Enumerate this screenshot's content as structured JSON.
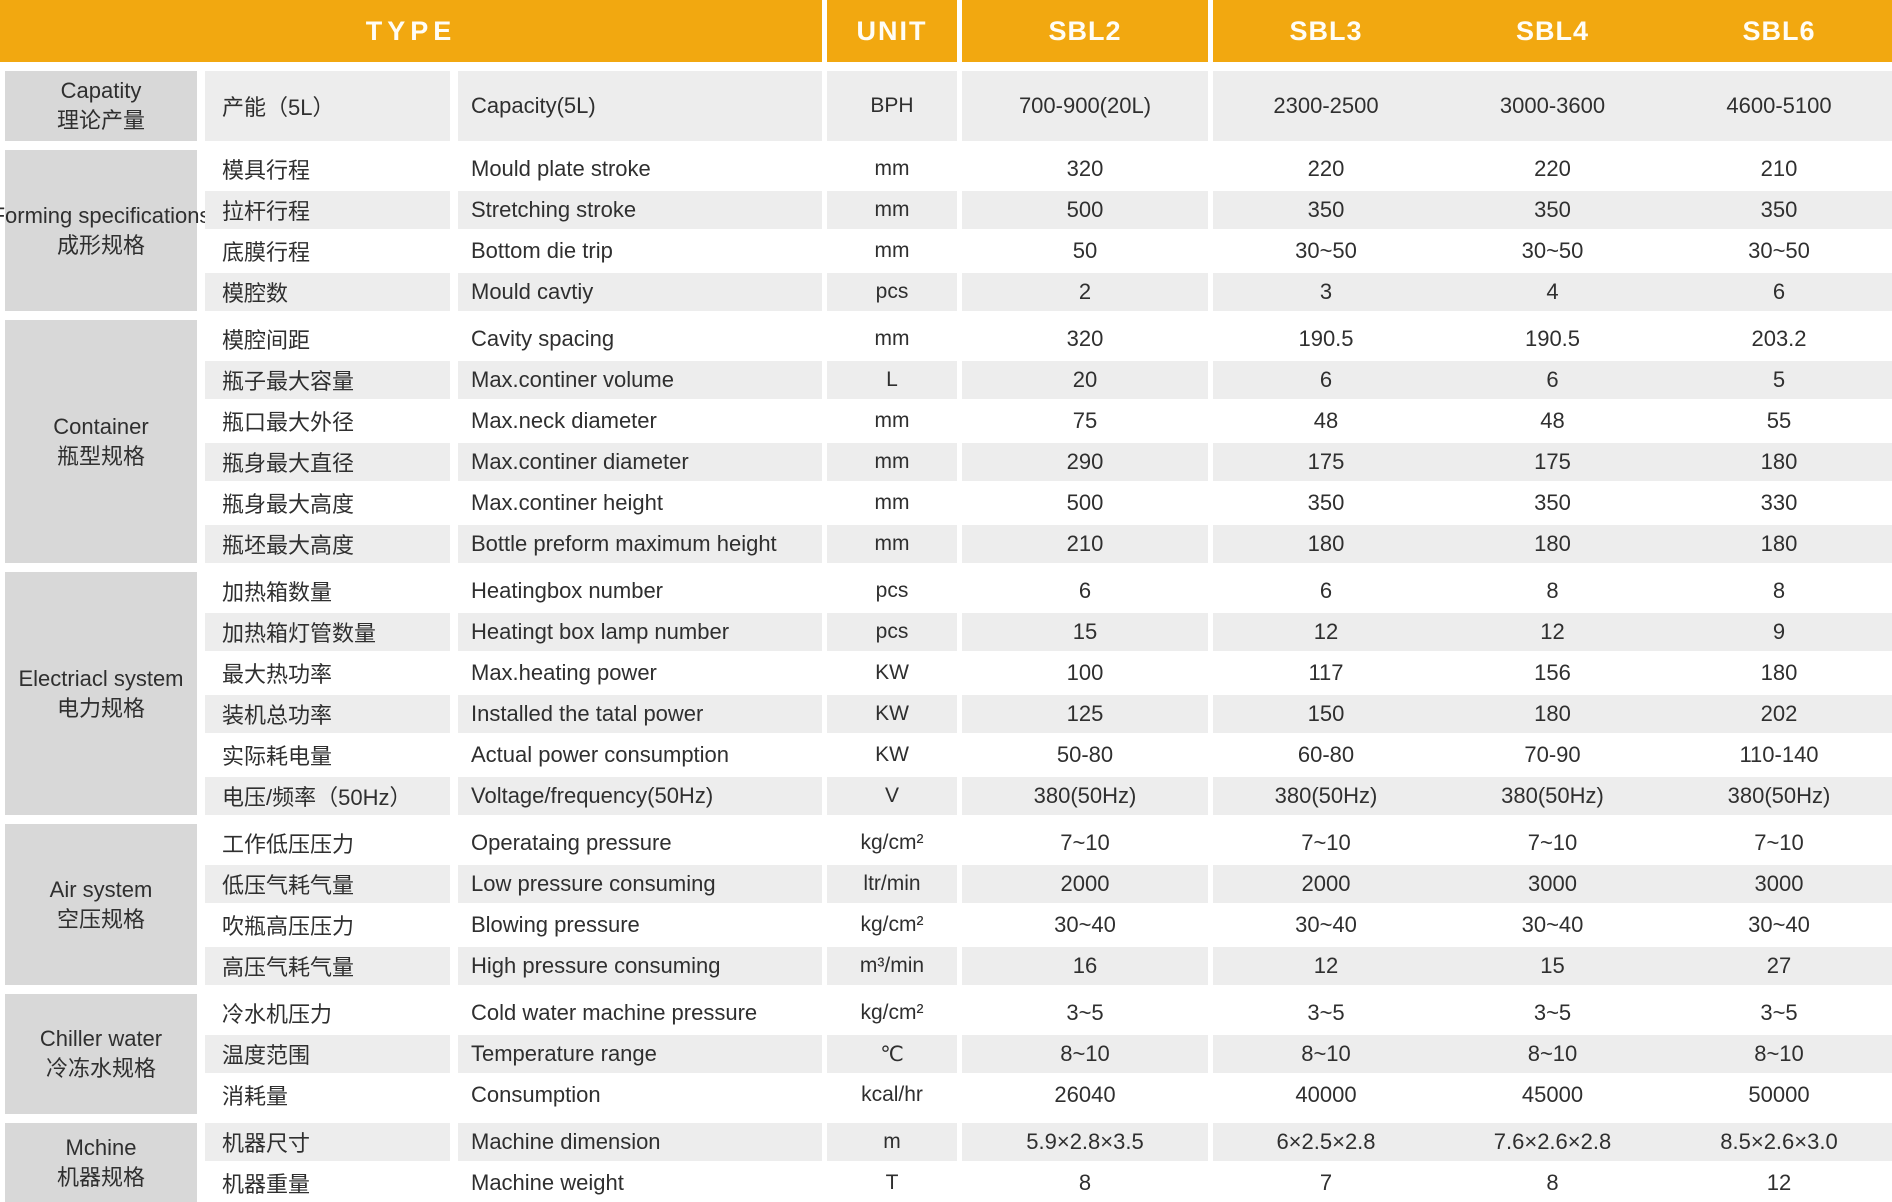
{
  "colors": {
    "header_bg": "#F2A810",
    "header_text": "#FFFDF6",
    "category_bg": "#D8D8D8",
    "row_shaded_bg": "#EDEDED",
    "row_white_bg": "#FFFFFF",
    "text": "#2F2F2F"
  },
  "header": {
    "type_label": "TYPE",
    "unit_label": "UNIT",
    "models": [
      "SBL2",
      "SBL3",
      "SBL4",
      "SBL6"
    ]
  },
  "groups": [
    {
      "name_en": "Capatity",
      "name_zh": "理论产量",
      "rows": [
        {
          "zh": "产能（5L）",
          "en": "Capacity(5L)",
          "unit": "BPH",
          "values": [
            "700-900(20L)",
            "2300-2500",
            "3000-3600",
            "4600-5100"
          ]
        }
      ]
    },
    {
      "name_en": "Forming specifications",
      "name_zh": "成形规格",
      "rows": [
        {
          "zh": "模具行程",
          "en": "Mould plate stroke",
          "unit": "mm",
          "values": [
            "320",
            "220",
            "220",
            "210"
          ]
        },
        {
          "zh": "拉杆行程",
          "en": "Stretching stroke",
          "unit": "mm",
          "values": [
            "500",
            "350",
            "350",
            "350"
          ]
        },
        {
          "zh": "底膜行程",
          "en": "Bottom die trip",
          "unit": "mm",
          "values": [
            "50",
            "30~50",
            "30~50",
            "30~50"
          ]
        },
        {
          "zh": "模腔数",
          "en": "Mould cavtiy",
          "unit": "pcs",
          "values": [
            "2",
            "3",
            "4",
            "6"
          ]
        }
      ]
    },
    {
      "name_en": "Container",
      "name_zh": "瓶型规格",
      "rows": [
        {
          "zh": "模腔间距",
          "en": "Cavity spacing",
          "unit": "mm",
          "values": [
            "320",
            "190.5",
            "190.5",
            "203.2"
          ]
        },
        {
          "zh": "瓶子最大容量",
          "en": "Max.continer volume",
          "unit": "L",
          "values": [
            "20",
            "6",
            "6",
            "5"
          ]
        },
        {
          "zh": "瓶口最大外径",
          "en": "Max.neck diameter",
          "unit": "mm",
          "values": [
            "75",
            "48",
            "48",
            "55"
          ]
        },
        {
          "zh": "瓶身最大直径",
          "en": "Max.continer diameter",
          "unit": "mm",
          "values": [
            "290",
            "175",
            "175",
            "180"
          ]
        },
        {
          "zh": "瓶身最大高度",
          "en": "Max.continer height",
          "unit": "mm",
          "values": [
            "500",
            "350",
            "350",
            "330"
          ]
        },
        {
          "zh": "瓶坯最大高度",
          "en": "Bottle preform maximum height",
          "unit": "mm",
          "values": [
            "210",
            "180",
            "180",
            "180"
          ]
        }
      ]
    },
    {
      "name_en": "Electriacl system",
      "name_zh": "电力规格",
      "rows": [
        {
          "zh": "加热箱数量",
          "en": "Heatingbox number",
          "unit": "pcs",
          "values": [
            "6",
            "6",
            "8",
            "8"
          ]
        },
        {
          "zh": "加热箱灯管数量",
          "en": "Heatingt box lamp number",
          "unit": "pcs",
          "values": [
            "15",
            "12",
            "12",
            "9"
          ]
        },
        {
          "zh": "最大热功率",
          "en": "Max.heating power",
          "unit": "KW",
          "values": [
            "100",
            "117",
            "156",
            "180"
          ]
        },
        {
          "zh": "装机总功率",
          "en": "Installed the tatal power",
          "unit": "KW",
          "values": [
            "125",
            "150",
            "180",
            "202"
          ]
        },
        {
          "zh": "实际耗电量",
          "en": "Actual power consumption",
          "unit": "KW",
          "values": [
            "50-80",
            "60-80",
            "70-90",
            "110-140"
          ]
        },
        {
          "zh": "电压/频率（50Hz）",
          "en": "Voltage/frequency(50Hz)",
          "unit": "V",
          "values": [
            "380(50Hz)",
            "380(50Hz)",
            "380(50Hz)",
            "380(50Hz)"
          ]
        }
      ]
    },
    {
      "name_en": "Air system",
      "name_zh": "空压规格",
      "rows": [
        {
          "zh": "工作低压压力",
          "en": "Operataing pressure",
          "unit": "kg/cm²",
          "values": [
            "7~10",
            "7~10",
            "7~10",
            "7~10"
          ]
        },
        {
          "zh": "低压气耗气量",
          "en": "Low pressure consuming",
          "unit": "ltr/min",
          "values": [
            "2000",
            "2000",
            "3000",
            "3000"
          ]
        },
        {
          "zh": "吹瓶高压压力",
          "en": "Blowing pressure",
          "unit": "kg/cm²",
          "values": [
            "30~40",
            "30~40",
            "30~40",
            "30~40"
          ]
        },
        {
          "zh": "高压气耗气量",
          "en": "High pressure consuming",
          "unit": "m³/min",
          "values": [
            "16",
            "12",
            "15",
            "27"
          ]
        }
      ]
    },
    {
      "name_en": "Chiller water",
      "name_zh": "冷冻水规格",
      "rows": [
        {
          "zh": "冷水机压力",
          "en": "Cold water machine pressure",
          "unit": "kg/cm²",
          "values": [
            "3~5",
            "3~5",
            "3~5",
            "3~5"
          ]
        },
        {
          "zh": "温度范围",
          "en": "Temperature range",
          "unit": "℃",
          "values": [
            "8~10",
            "8~10",
            "8~10",
            "8~10"
          ]
        },
        {
          "zh": "消耗量",
          "en": "Consumption",
          "unit": "kcal/hr",
          "values": [
            "26040",
            "40000",
            "45000",
            "50000"
          ]
        }
      ]
    },
    {
      "name_en": "Mchine",
      "name_zh": "机器规格",
      "rows": [
        {
          "zh": "机器尺寸",
          "en": "Machine dimension",
          "unit": "m",
          "values": [
            "5.9×2.8×3.5",
            "6×2.5×2.8",
            "7.6×2.6×2.8",
            "8.5×2.6×3.0"
          ]
        },
        {
          "zh": "机器重量",
          "en": "Machine weight",
          "unit": "T",
          "values": [
            "8",
            "7",
            "8",
            "12"
          ]
        }
      ]
    }
  ]
}
